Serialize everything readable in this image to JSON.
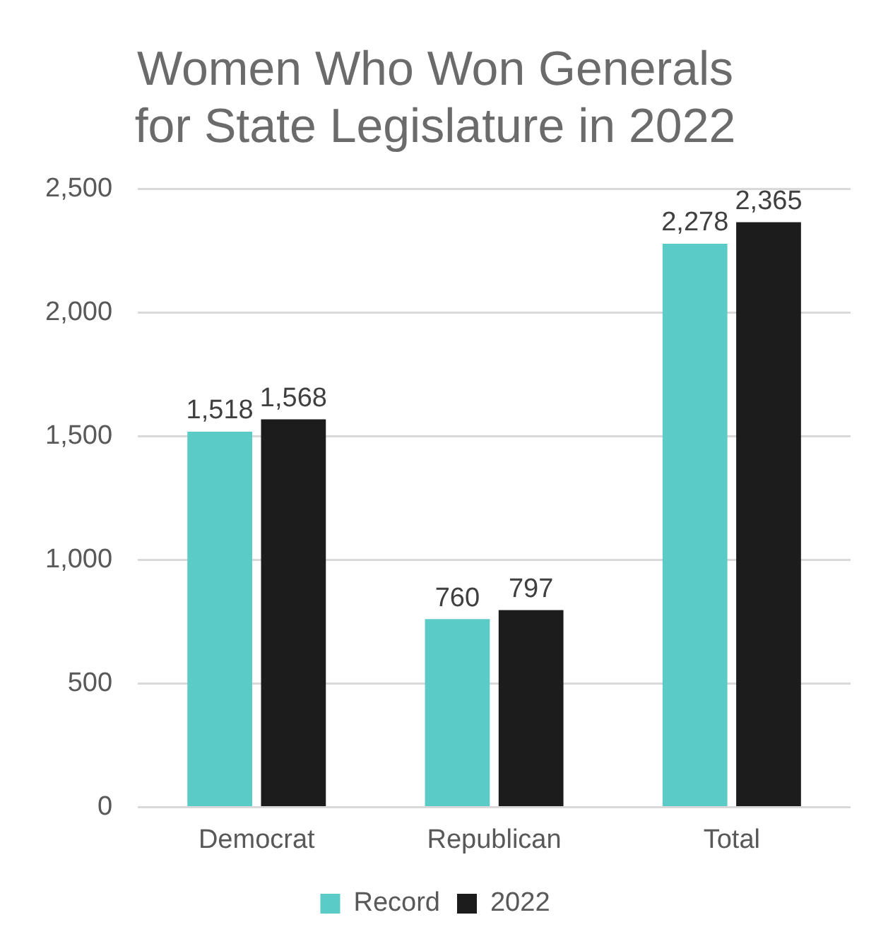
{
  "chart_data": {
    "type": "bar",
    "title": "Women Who Won Generals for State Legislature in 2022",
    "categories": [
      "Democrat",
      "Republican",
      "Total"
    ],
    "series": [
      {
        "name": "Record",
        "color": "#5bcbc8",
        "values": [
          1518,
          760,
          2278
        ],
        "value_labels": [
          "1,518",
          "760",
          "2,278"
        ]
      },
      {
        "name": "2022",
        "color": "#1c1c1c",
        "values": [
          1568,
          797,
          2365
        ],
        "value_labels": [
          "1,568",
          "797",
          "2,365"
        ]
      }
    ],
    "ylim": [
      0,
      2500
    ],
    "yticks": [
      0,
      500,
      {
        "value": 1000,
        "label": "1,000"
      },
      {
        "value": 1500,
        "label": "1,500"
      },
      {
        "value": 2000,
        "label": "2,000"
      },
      {
        "value": 2500,
        "label": "2,500"
      }
    ],
    "grid": "y",
    "legend": "bottom"
  }
}
